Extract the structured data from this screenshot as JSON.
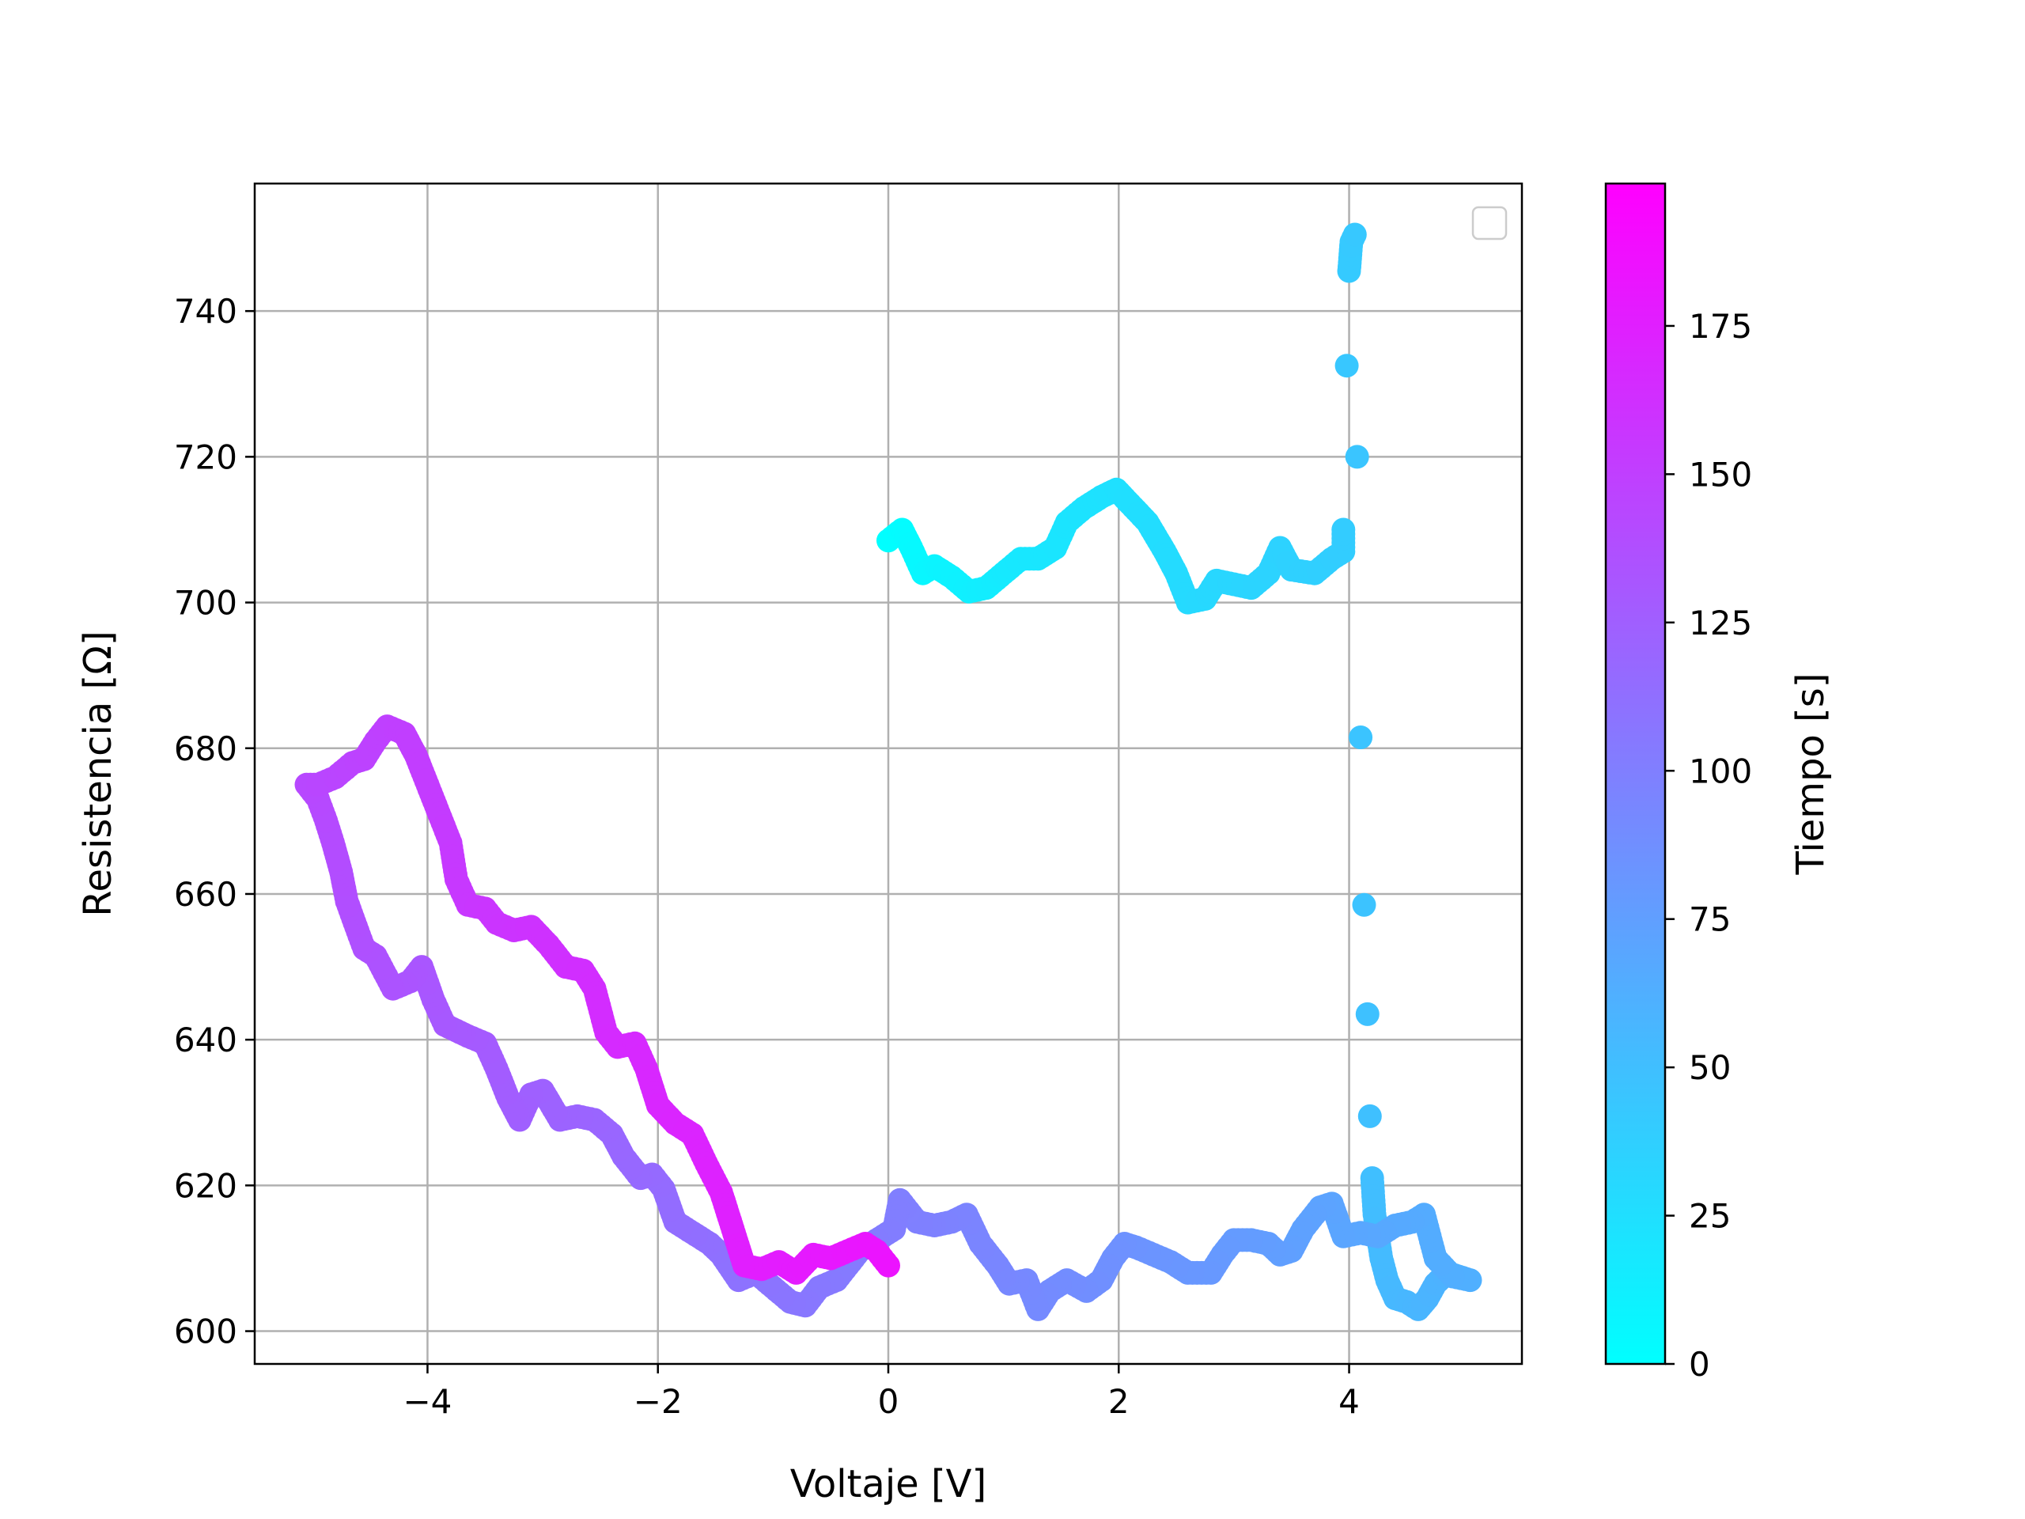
{
  "chart_data": {
    "type": "scatter",
    "title": "",
    "xlabel": "Voltaje [V]",
    "ylabel": "Resistencia [Ω]",
    "xlim": [
      -5.5,
      5.5
    ],
    "ylim": [
      595.5,
      757.5
    ],
    "xticks": [
      -4,
      -2,
      0,
      2,
      4
    ],
    "xtick_labels": [
      "−4",
      "−2",
      "0",
      "2",
      "4"
    ],
    "yticks": [
      600,
      620,
      640,
      660,
      680,
      700,
      720,
      740
    ],
    "ytick_labels": [
      "600",
      "620",
      "640",
      "660",
      "680",
      "700",
      "720",
      "740"
    ],
    "grid": true,
    "legend": {
      "placement": "upper right",
      "entries": []
    },
    "colorbar": {
      "label": "Tiempo [s]",
      "colormap": "cool",
      "range": [
        0,
        199
      ],
      "ticks": [
        0,
        25,
        50,
        75,
        100,
        125,
        150,
        175
      ],
      "colors": [
        "#00ffff",
        "#ff00ff"
      ]
    },
    "path": [
      [
        0.0,
        708.5,
        0
      ],
      [
        0.12,
        710.0,
        2
      ],
      [
        0.2,
        707.5,
        4
      ],
      [
        0.3,
        704.0,
        6
      ],
      [
        0.4,
        705.0,
        8
      ],
      [
        0.55,
        703.5,
        10
      ],
      [
        0.7,
        701.5,
        12
      ],
      [
        0.85,
        702.0,
        14
      ],
      [
        1.0,
        704.0,
        16
      ],
      [
        1.15,
        706.0,
        18
      ],
      [
        1.3,
        706.0,
        19
      ],
      [
        1.45,
        707.5,
        20
      ],
      [
        1.55,
        711.0,
        21
      ],
      [
        1.7,
        713.0,
        22
      ],
      [
        1.85,
        714.5,
        23
      ],
      [
        1.98,
        715.5,
        24
      ],
      [
        2.1,
        713.5,
        25
      ],
      [
        2.25,
        711.0,
        26
      ],
      [
        2.4,
        707.0,
        27
      ],
      [
        2.5,
        704.0,
        28
      ],
      [
        2.6,
        700.0,
        29
      ],
      [
        2.75,
        700.5,
        30
      ],
      [
        2.85,
        703.0,
        31
      ],
      [
        3.0,
        702.5,
        32
      ],
      [
        3.15,
        702.0,
        33
      ],
      [
        3.3,
        704.0,
        34
      ],
      [
        3.4,
        707.5,
        35
      ],
      [
        3.5,
        704.5,
        36
      ],
      [
        3.7,
        704.0,
        37
      ],
      [
        3.85,
        706.0,
        38
      ],
      [
        3.95,
        707.0,
        39
      ],
      [
        3.95,
        710.0,
        40
      ],
      [
        4.0,
        745.5,
        41
      ],
      [
        4.02,
        749.5,
        42
      ],
      [
        4.05,
        750.5,
        43
      ],
      [
        3.98,
        732.5,
        44
      ],
      [
        4.07,
        720.0,
        45
      ],
      [
        4.1,
        681.5,
        46
      ],
      [
        4.13,
        658.5,
        47
      ],
      [
        4.16,
        643.5,
        48
      ],
      [
        4.18,
        629.5,
        49
      ],
      [
        4.2,
        621.0,
        50
      ],
      [
        4.22,
        616.0,
        51
      ],
      [
        4.25,
        613.0,
        52
      ],
      [
        4.28,
        610.0,
        53
      ],
      [
        4.33,
        607.0,
        54
      ],
      [
        4.4,
        604.5,
        55
      ],
      [
        4.5,
        604.0,
        56
      ],
      [
        4.6,
        603.0,
        57
      ],
      [
        4.68,
        604.5,
        58
      ],
      [
        4.75,
        606.5,
        59
      ],
      [
        4.85,
        608.0,
        60
      ],
      [
        4.95,
        607.5,
        61
      ],
      [
        5.05,
        607.0,
        62
      ],
      [
        4.9,
        607.5,
        63
      ],
      [
        4.75,
        610.0,
        64
      ],
      [
        4.65,
        616.0,
        65
      ],
      [
        4.55,
        615.0,
        66
      ],
      [
        4.4,
        614.5,
        67
      ],
      [
        4.25,
        613.0,
        68
      ],
      [
        4.1,
        613.5,
        69
      ],
      [
        3.95,
        613.0,
        70
      ],
      [
        3.85,
        617.5,
        71
      ],
      [
        3.75,
        617.0,
        72
      ],
      [
        3.6,
        614.0,
        73
      ],
      [
        3.5,
        611.0,
        74
      ],
      [
        3.4,
        610.5,
        75
      ],
      [
        3.3,
        612.0,
        76
      ],
      [
        3.15,
        612.5,
        77
      ],
      [
        3.0,
        612.5,
        78
      ],
      [
        2.9,
        610.5,
        79
      ],
      [
        2.8,
        608.0,
        80
      ],
      [
        2.6,
        608.0,
        81
      ],
      [
        2.45,
        609.5,
        82
      ],
      [
        2.3,
        610.5,
        83
      ],
      [
        2.15,
        611.5,
        84
      ],
      [
        2.05,
        612.0,
        85
      ],
      [
        1.95,
        610.0,
        86
      ],
      [
        1.85,
        607.0,
        87
      ],
      [
        1.72,
        605.5,
        88
      ],
      [
        1.55,
        607.0,
        89
      ],
      [
        1.4,
        605.5,
        90
      ],
      [
        1.3,
        603.0,
        91
      ],
      [
        1.2,
        607.0,
        92
      ],
      [
        1.05,
        606.5,
        93
      ],
      [
        0.95,
        609.0,
        94
      ],
      [
        0.8,
        612.0,
        95
      ],
      [
        0.68,
        616.0,
        96
      ],
      [
        0.55,
        615.0,
        97
      ],
      [
        0.4,
        614.5,
        98
      ],
      [
        0.25,
        615.0,
        99
      ],
      [
        0.1,
        618.0,
        100
      ],
      [
        0.05,
        614.0,
        101
      ],
      [
        -0.1,
        612.5,
        102
      ],
      [
        -0.25,
        611.0,
        103
      ],
      [
        -0.45,
        607.0,
        104
      ],
      [
        -0.6,
        606.0,
        105
      ],
      [
        -0.72,
        603.5,
        106
      ],
      [
        -0.85,
        604.0,
        107
      ],
      [
        -1.0,
        606.0,
        108
      ],
      [
        -1.15,
        608.0,
        109
      ],
      [
        -1.3,
        607.0,
        110
      ],
      [
        -1.45,
        610.5,
        111
      ],
      [
        -1.55,
        612.0,
        112
      ],
      [
        -1.7,
        613.5,
        113
      ],
      [
        -1.85,
        615.0,
        114
      ],
      [
        -1.95,
        619.5,
        115
      ],
      [
        -2.05,
        621.5,
        116
      ],
      [
        -2.15,
        621.0,
        117
      ],
      [
        -2.3,
        624.0,
        118
      ],
      [
        -2.4,
        627.0,
        119
      ],
      [
        -2.55,
        629.0,
        120
      ],
      [
        -2.7,
        629.5,
        121
      ],
      [
        -2.85,
        629.0,
        122
      ],
      [
        -3.0,
        633.0,
        123
      ],
      [
        -3.1,
        632.5,
        124
      ],
      [
        -3.2,
        629.0,
        125
      ],
      [
        -3.3,
        632.0,
        126
      ],
      [
        -3.4,
        636.0,
        127
      ],
      [
        -3.5,
        639.5,
        128
      ],
      [
        -3.65,
        640.5,
        129
      ],
      [
        -3.85,
        642.0,
        130
      ],
      [
        -3.95,
        645.5,
        131
      ],
      [
        -4.05,
        650.0,
        132
      ],
      [
        -4.15,
        648.0,
        133
      ],
      [
        -4.3,
        647.0,
        134
      ],
      [
        -4.45,
        651.5,
        135
      ],
      [
        -4.55,
        652.5,
        136
      ],
      [
        -4.62,
        655.5,
        137
      ],
      [
        -4.7,
        659.0,
        138
      ],
      [
        -4.75,
        663.0,
        139
      ],
      [
        -4.82,
        667.0,
        140
      ],
      [
        -4.88,
        670.0,
        141
      ],
      [
        -4.95,
        673.0,
        142
      ],
      [
        -5.05,
        675.0,
        143
      ],
      [
        -4.95,
        675.0,
        144
      ],
      [
        -4.8,
        676.0,
        145
      ],
      [
        -4.65,
        678.0,
        146
      ],
      [
        -4.55,
        678.5,
        147
      ],
      [
        -4.45,
        681.0,
        148
      ],
      [
        -4.35,
        683.0,
        149
      ],
      [
        -4.2,
        682.0,
        150
      ],
      [
        -4.1,
        679.0,
        151
      ],
      [
        -4.0,
        675.0,
        152
      ],
      [
        -3.9,
        671.0,
        153
      ],
      [
        -3.8,
        667.0,
        154
      ],
      [
        -3.75,
        662.0,
        155
      ],
      [
        -3.65,
        658.5,
        156
      ],
      [
        -3.5,
        658.0,
        157
      ],
      [
        -3.4,
        656.0,
        158
      ],
      [
        -3.25,
        655.0,
        159
      ],
      [
        -3.1,
        655.5,
        160
      ],
      [
        -2.95,
        653.0,
        161
      ],
      [
        -2.8,
        650.0,
        162
      ],
      [
        -2.65,
        649.5,
        163
      ],
      [
        -2.55,
        647.0,
        164
      ],
      [
        -2.45,
        641.0,
        165
      ],
      [
        -2.35,
        639.0,
        166
      ],
      [
        -2.2,
        639.5,
        167
      ],
      [
        -2.1,
        636.0,
        168
      ],
      [
        -2.0,
        631.0,
        169
      ],
      [
        -1.85,
        628.5,
        170
      ],
      [
        -1.7,
        627.0,
        171
      ],
      [
        -1.58,
        623.0,
        172
      ],
      [
        -1.45,
        619.0,
        173
      ],
      [
        -1.35,
        614.0,
        174
      ],
      [
        -1.25,
        609.0,
        175
      ],
      [
        -1.1,
        608.5,
        176
      ],
      [
        -0.95,
        609.5,
        177
      ],
      [
        -0.8,
        608.0,
        178
      ],
      [
        -0.65,
        610.5,
        179
      ],
      [
        -0.5,
        610.0,
        180
      ],
      [
        -0.35,
        611.0,
        181
      ],
      [
        -0.2,
        612.0,
        182
      ],
      [
        -0.1,
        611.0,
        183
      ],
      [
        0.0,
        609.0,
        184
      ]
    ]
  }
}
